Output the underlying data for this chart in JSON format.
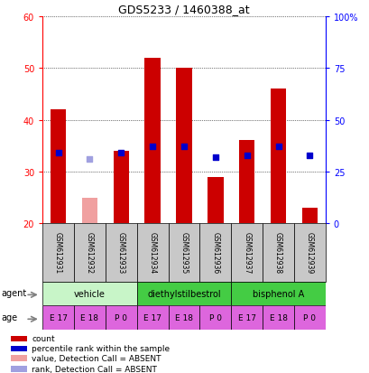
{
  "title": "GDS5233 / 1460388_at",
  "samples": [
    "GSM612931",
    "GSM612932",
    "GSM612933",
    "GSM612934",
    "GSM612935",
    "GSM612936",
    "GSM612937",
    "GSM612938",
    "GSM612939"
  ],
  "count_values": [
    42,
    null,
    34,
    52,
    50,
    29,
    36,
    46,
    23
  ],
  "count_absent": [
    null,
    25,
    null,
    null,
    null,
    null,
    null,
    null,
    null
  ],
  "percentile_values": [
    34,
    null,
    34,
    37,
    37,
    32,
    33,
    37,
    33
  ],
  "percentile_absent": [
    null,
    31,
    null,
    null,
    null,
    null,
    null,
    null,
    null
  ],
  "ylim_left": [
    20,
    60
  ],
  "ylim_right": [
    0,
    100
  ],
  "yticks_left": [
    20,
    30,
    40,
    50,
    60
  ],
  "yticks_right": [
    0,
    25,
    50,
    75,
    100
  ],
  "ytick_labels_right": [
    "0",
    "25",
    "50",
    "75",
    "100%"
  ],
  "agent_configs": [
    {
      "label": "vehicle",
      "start": 0,
      "end": 3,
      "color": "#c8f5c8"
    },
    {
      "label": "diethylstilbestrol",
      "start": 3,
      "end": 6,
      "color": "#44cc44"
    },
    {
      "label": "bisphenol A",
      "start": 6,
      "end": 9,
      "color": "#44cc44"
    }
  ],
  "ages": [
    "E 17",
    "E 18",
    "P 0",
    "E 17",
    "E 18",
    "P 0",
    "E 17",
    "E 18",
    "P 0"
  ],
  "age_color": "#dd66dd",
  "bar_color_present": "#cc0000",
  "bar_color_absent": "#f0a0a0",
  "dot_color_present": "#0000cc",
  "dot_color_absent": "#a0a0e0",
  "sample_bg_color": "#c8c8c8",
  "bar_width": 0.5,
  "dot_size": 14,
  "legend_items": [
    {
      "color": "#cc0000",
      "label": "count"
    },
    {
      "color": "#0000cc",
      "label": "percentile rank within the sample"
    },
    {
      "color": "#f0a0a0",
      "label": "value, Detection Call = ABSENT"
    },
    {
      "color": "#a0a0e0",
      "label": "rank, Detection Call = ABSENT"
    }
  ]
}
